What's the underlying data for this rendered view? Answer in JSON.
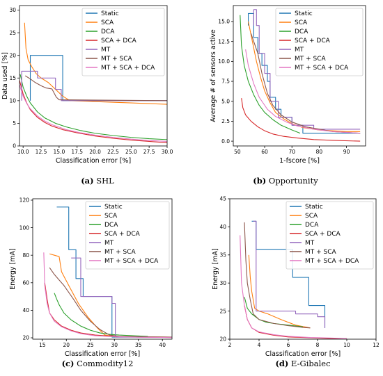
{
  "series_colors": {
    "Static": "#1f77b4",
    "SCA": "#ff7f0e",
    "DCA": "#2ca02c",
    "SCA + DCA": "#d62728",
    "MT": "#9467bd",
    "MT + SCA": "#8c564b",
    "MT + SCA + DCA": "#e377c2"
  },
  "chart_data": [
    {
      "type": "line",
      "caption_label": "(a)",
      "caption_text": " SHL",
      "xlabel": "Classification error [%]",
      "ylabel": "Data used [%]",
      "xlim": [
        9.5,
        30
      ],
      "ylim": [
        0,
        31
      ],
      "xticks": [
        10.0,
        12.5,
        15.0,
        17.5,
        20.0,
        22.5,
        25.0,
        27.5,
        30.0
      ],
      "xtick_labels": [
        "10.0",
        "12.5",
        "15.0",
        "17.5",
        "20.0",
        "22.5",
        "25.0",
        "27.5",
        "30.0"
      ],
      "yticks": [
        0,
        5,
        10,
        15,
        20,
        25,
        30
      ],
      "ytick_labels": [
        "0",
        "5",
        "10",
        "15",
        "20",
        "25",
        "30"
      ],
      "legend": "top-right",
      "series": [
        {
          "name": "Static",
          "step": true,
          "x": [
            11.0,
            11.0,
            15.5,
            15.5,
            30.0
          ],
          "y": [
            10,
            20,
            20,
            10,
            10
          ]
        },
        {
          "name": "SCA",
          "step": false,
          "x": [
            10.2,
            10.4,
            10.7,
            11.2,
            11.8,
            12.5,
            13.5,
            14.5,
            15.5,
            16.5,
            20.0,
            25.0,
            30.0
          ],
          "y": [
            27.2,
            21.5,
            19.0,
            17.5,
            16.0,
            15.0,
            14.0,
            12.5,
            11.0,
            10.0,
            9.8,
            9.5,
            9.2
          ]
        },
        {
          "name": "DCA",
          "step": false,
          "x": [
            9.6,
            10.0,
            10.5,
            11.0,
            12.0,
            13.0,
            14.5,
            16.0,
            18.0,
            20.0,
            22.5,
            25.0,
            27.5,
            30.0
          ],
          "y": [
            15.8,
            13.0,
            11.0,
            9.5,
            7.5,
            6.2,
            5.0,
            4.2,
            3.4,
            2.8,
            2.3,
            1.9,
            1.6,
            1.4
          ]
        },
        {
          "name": "SCA + DCA",
          "step": false,
          "x": [
            9.5,
            10.0,
            10.5,
            11.0,
            12.0,
            13.0,
            14.0,
            15.5,
            17.5,
            20.0,
            22.5,
            25.0,
            27.5,
            30.0
          ],
          "y": [
            14.5,
            11.5,
            9.5,
            8.0,
            6.3,
            5.2,
            4.4,
            3.6,
            2.9,
            2.2,
            1.7,
            1.3,
            1.0,
            0.7
          ]
        },
        {
          "name": "MT",
          "step": true,
          "x": [
            9.8,
            9.8,
            12.0,
            12.0,
            14.5,
            14.5,
            15.3,
            15.3,
            30.0
          ],
          "y": [
            10,
            16.5,
            16.5,
            15.0,
            15.0,
            12.5,
            12.5,
            10.0,
            10.0
          ]
        },
        {
          "name": "MT + SCA",
          "step": false,
          "x": [
            10.3,
            11.0,
            11.7,
            12.5,
            13.2,
            14.0,
            14.6,
            15.0,
            30.0
          ],
          "y": [
            15.5,
            14.8,
            14.0,
            13.3,
            12.8,
            12.6,
            10.8,
            10.2,
            10.0
          ]
        },
        {
          "name": "MT + SCA + DCA",
          "step": false,
          "x": [
            9.5,
            10.0,
            10.5,
            11.0,
            12.0,
            13.0,
            14.0,
            16.0,
            18.0,
            20.0,
            22.5,
            25.0,
            27.5,
            30.0
          ],
          "y": [
            13.5,
            11.0,
            9.4,
            8.2,
            6.6,
            5.5,
            4.7,
            3.6,
            2.9,
            2.4,
            1.9,
            1.5,
            1.2,
            1.0
          ]
        }
      ]
    },
    {
      "type": "line",
      "caption_label": "(b)",
      "caption_text": " Opportunity",
      "xlabel": "1-fscore [%]",
      "ylabel": "Average # of sensors active",
      "xlim": [
        48.5,
        97
      ],
      "ylim": [
        -0.6,
        17
      ],
      "xticks": [
        50,
        60,
        70,
        80,
        90
      ],
      "xtick_labels": [
        "50",
        "60",
        "70",
        "80",
        "90"
      ],
      "yticks": [
        0.0,
        2.5,
        5.0,
        7.5,
        10.0,
        12.5,
        15.0
      ],
      "ytick_labels": [
        "0.0",
        "2.5",
        "5.0",
        "7.5",
        "10.0",
        "12.5",
        "15.0"
      ],
      "legend": "top-right",
      "series": [
        {
          "name": "Static",
          "step": true,
          "x": [
            54.0,
            54.0,
            56.0,
            56.0,
            57.5,
            57.5,
            59.0,
            59.0,
            61.0,
            61.0,
            62.0,
            62.0,
            64.0,
            64.0,
            66.0,
            66.0,
            70.0,
            70.0,
            74.0,
            74.0,
            95.0
          ],
          "y": [
            14.5,
            16.0,
            16.0,
            13.0,
            13.0,
            11.0,
            11.0,
            9.5,
            9.5,
            7.5,
            7.5,
            5.5,
            5.5,
            4.0,
            4.0,
            3.0,
            3.0,
            2.0,
            2.0,
            1.0,
            1.0
          ]
        },
        {
          "name": "SCA",
          "step": false,
          "x": [
            54.0,
            55.5,
            57.0,
            58.5,
            60.0,
            62.0,
            64.0,
            67.0,
            70.0,
            74.0,
            80.0,
            90.0,
            95.0
          ],
          "y": [
            15.0,
            12.5,
            10.0,
            8.0,
            6.3,
            4.8,
            3.6,
            2.8,
            2.2,
            1.7,
            1.4,
            1.2,
            1.2
          ]
        },
        {
          "name": "DCA",
          "step": false,
          "x": [
            51.0,
            51.5,
            52.5,
            54.0,
            56.0,
            58.0,
            60.0,
            63.0,
            66.0,
            70.0,
            73.0
          ],
          "y": [
            15.8,
            12.0,
            9.5,
            7.5,
            5.8,
            4.5,
            3.6,
            2.7,
            2.0,
            1.4,
            1.0
          ]
        },
        {
          "name": "SCA + DCA",
          "step": false,
          "x": [
            51.5,
            52.0,
            53.0,
            55.0,
            57.5,
            60.0,
            63.0,
            67.0,
            72.0,
            78.0,
            85.0,
            95.0
          ],
          "y": [
            5.4,
            4.2,
            3.3,
            2.5,
            1.8,
            1.3,
            0.9,
            0.6,
            0.4,
            0.2,
            0.1,
            0.0
          ]
        },
        {
          "name": "MT",
          "step": true,
          "x": [
            56.0,
            56.0,
            57.0,
            57.0,
            58.0,
            58.0,
            60.0,
            60.0,
            62.0,
            62.0,
            65.0,
            65.0,
            70.0,
            70.0,
            78.0,
            78.0,
            95.0
          ],
          "y": [
            14.5,
            16.5,
            16.5,
            14.5,
            14.5,
            11.0,
            11.0,
            8.5,
            8.5,
            5.0,
            5.0,
            3.0,
            3.0,
            2.0,
            2.0,
            1.5,
            1.5
          ]
        },
        {
          "name": "MT + SCA",
          "step": false,
          "x": [
            55.0,
            56.0,
            57.5,
            59.0,
            61.0,
            63.0,
            66.0,
            70.0,
            75.0,
            85.0,
            95.0
          ],
          "y": [
            13.5,
            12.5,
            11.0,
            8.5,
            6.0,
            4.5,
            3.3,
            2.4,
            1.8,
            1.2,
            1.0
          ]
        },
        {
          "name": "MT + SCA + DCA",
          "step": false,
          "x": [
            53.0,
            54.0,
            56.0,
            58.0,
            61.0,
            64.0,
            68.0,
            72.0,
            78.0,
            85.0,
            95.0
          ],
          "y": [
            11.5,
            9.5,
            7.2,
            5.5,
            4.0,
            3.1,
            2.4,
            1.9,
            1.5,
            1.2,
            1.0
          ]
        }
      ]
    },
    {
      "type": "line",
      "caption_label": "(c)",
      "caption_text": " Commodity12",
      "xlabel": "Classification error [%]",
      "ylabel": "Energy [mA]",
      "xlim": [
        13,
        42
      ],
      "ylim": [
        19,
        121
      ],
      "xticks": [
        15,
        20,
        25,
        30,
        35,
        40
      ],
      "xtick_labels": [
        "15",
        "20",
        "25",
        "30",
        "35",
        "40"
      ],
      "yticks": [
        20,
        40,
        60,
        80,
        100,
        120
      ],
      "ytick_labels": [
        "20",
        "40",
        "60",
        "80",
        "100",
        "120"
      ],
      "legend": "top-right",
      "series": [
        {
          "name": "Static",
          "step": true,
          "x": [
            18.0,
            18.0,
            20.5,
            20.5,
            22.0,
            22.0,
            23.5,
            23.5,
            29.5,
            29.5,
            42.0
          ],
          "y": [
            115.0,
            115.0,
            115.0,
            84.0,
            84.0,
            63.0,
            63.0,
            50.0,
            50.0,
            20.5,
            20.5
          ]
        },
        {
          "name": "SCA",
          "step": false,
          "x": [
            16.5,
            17.5,
            18.5,
            19.0,
            20.5,
            22.5,
            24.5,
            26.5,
            28.0,
            30.0,
            42.0
          ],
          "y": [
            81.0,
            80.0,
            79.0,
            68.0,
            58.0,
            45.0,
            35.0,
            27.0,
            22.0,
            21.0,
            20.5
          ]
        },
        {
          "name": "DCA",
          "step": false,
          "x": [
            17.5,
            18.0,
            18.5,
            19.5,
            21.0,
            23.0,
            25.0,
            27.0,
            29.0,
            31.0,
            34.0,
            37.0
          ],
          "y": [
            52.5,
            48.0,
            44.0,
            38.0,
            33.0,
            28.5,
            25.5,
            23.5,
            22.5,
            22.0,
            21.5,
            21.0
          ]
        },
        {
          "name": "SCA + DCA",
          "step": false,
          "x": [
            15.5,
            16.0,
            16.5,
            17.5,
            19.0,
            21.0,
            23.0,
            26.0,
            30.0,
            35.0,
            42.0
          ],
          "y": [
            60.0,
            48.0,
            38.0,
            33.0,
            28.5,
            25.5,
            23.5,
            22.0,
            21.0,
            20.5,
            20.2
          ]
        },
        {
          "name": "MT",
          "step": true,
          "x": [
            21.0,
            21.0,
            23.0,
            23.0,
            29.5,
            29.5,
            30.2,
            30.2,
            42.0
          ],
          "y": [
            78.0,
            78.0,
            78.0,
            50.0,
            50.0,
            45.0,
            45.0,
            20.5,
            20.5
          ]
        },
        {
          "name": "MT + SCA",
          "step": false,
          "x": [
            16.5,
            17.5,
            18.5,
            19.5,
            20.5,
            21.5,
            23.0,
            25.0,
            27.0,
            29.0,
            31.0,
            42.0
          ],
          "y": [
            71.0,
            66.0,
            62.0,
            58.0,
            53.0,
            48.0,
            40.0,
            32.0,
            26.0,
            22.0,
            21.0,
            20.5
          ]
        },
        {
          "name": "MT + SCA + DCA",
          "step": false,
          "x": [
            15.3,
            15.5,
            16.0,
            16.5,
            17.5,
            19.0,
            21.0,
            23.0,
            26.0,
            30.0,
            35.0,
            42.0
          ],
          "y": [
            82.0,
            58.0,
            45.0,
            38.0,
            32.0,
            28.0,
            25.0,
            23.0,
            21.5,
            20.8,
            20.4,
            20.2
          ]
        }
      ]
    },
    {
      "type": "line",
      "caption_label": "(d)",
      "caption_text": " E-Gibalec",
      "xlabel": "Classification error [%]",
      "ylabel": "Energy [mA]",
      "xlim": [
        2,
        12
      ],
      "ylim": [
        20,
        45
      ],
      "xticks": [
        2,
        4,
        6,
        8,
        10,
        12
      ],
      "xtick_labels": [
        "2",
        "4",
        "6",
        "8",
        "10",
        "12"
      ],
      "yticks": [
        20,
        25,
        30,
        35,
        40,
        45
      ],
      "ytick_labels": [
        "20",
        "25",
        "30",
        "35",
        "40",
        "45"
      ],
      "legend": "top-right",
      "series": [
        {
          "name": "Static",
          "step": true,
          "x": [
            3.5,
            3.5,
            3.8,
            3.8,
            6.3,
            6.3,
            7.4,
            7.4,
            8.5,
            8.5
          ],
          "y": [
            41.0,
            41.0,
            41.0,
            36.0,
            36.0,
            31.0,
            31.0,
            26.0,
            26.0,
            22.0
          ]
        },
        {
          "name": "SCA",
          "step": false,
          "x": [
            3.3,
            3.4,
            3.5,
            3.6,
            3.7,
            4.0,
            4.6,
            5.5,
            6.5,
            7.5
          ],
          "y": [
            35.0,
            31.0,
            28.5,
            27.0,
            25.5,
            25.0,
            24.5,
            23.5,
            22.5,
            22.0
          ]
        },
        {
          "name": "DCA",
          "step": false,
          "x": [
            3.0,
            3.2,
            3.5,
            4.0,
            4.5,
            5.0,
            6.0,
            7.0
          ],
          "y": [
            27.5,
            25.5,
            24.5,
            23.5,
            23.0,
            22.8,
            22.5,
            22.2
          ]
        },
        {
          "name": "SCA + DCA",
          "step": false,
          "x": [
            3.0,
            3.2,
            3.5,
            4.0,
            5.0,
            6.0,
            7.0,
            8.0,
            9.0,
            10.0
          ],
          "y": [
            26.0,
            23.5,
            22.0,
            21.2,
            20.7,
            20.4,
            20.3,
            20.2,
            20.1,
            20.1
          ]
        },
        {
          "name": "MT",
          "step": true,
          "x": [
            3.6,
            3.6,
            3.8,
            3.8,
            6.5,
            6.5,
            8.0,
            8.0,
            8.5,
            8.5
          ],
          "y": [
            41.0,
            41.0,
            41.0,
            25.0,
            25.0,
            24.5,
            24.5,
            24.0,
            24.0,
            22.0
          ]
        },
        {
          "name": "MT + SCA",
          "step": false,
          "x": [
            3.0,
            3.1,
            3.2,
            3.4,
            3.6,
            4.0,
            5.0,
            6.0,
            7.0,
            7.5
          ],
          "y": [
            40.8,
            34.0,
            30.0,
            27.0,
            24.5,
            23.5,
            22.8,
            22.4,
            22.1,
            22.0
          ]
        },
        {
          "name": "MT + SCA + DCA",
          "step": false,
          "x": [
            2.7,
            2.8,
            3.0,
            3.2,
            3.5,
            4.0,
            5.0,
            6.0,
            7.5,
            9.0,
            10.0
          ],
          "y": [
            38.5,
            30.0,
            26.0,
            23.5,
            22.0,
            21.3,
            20.8,
            20.5,
            20.3,
            20.2,
            20.1
          ]
        }
      ]
    }
  ]
}
